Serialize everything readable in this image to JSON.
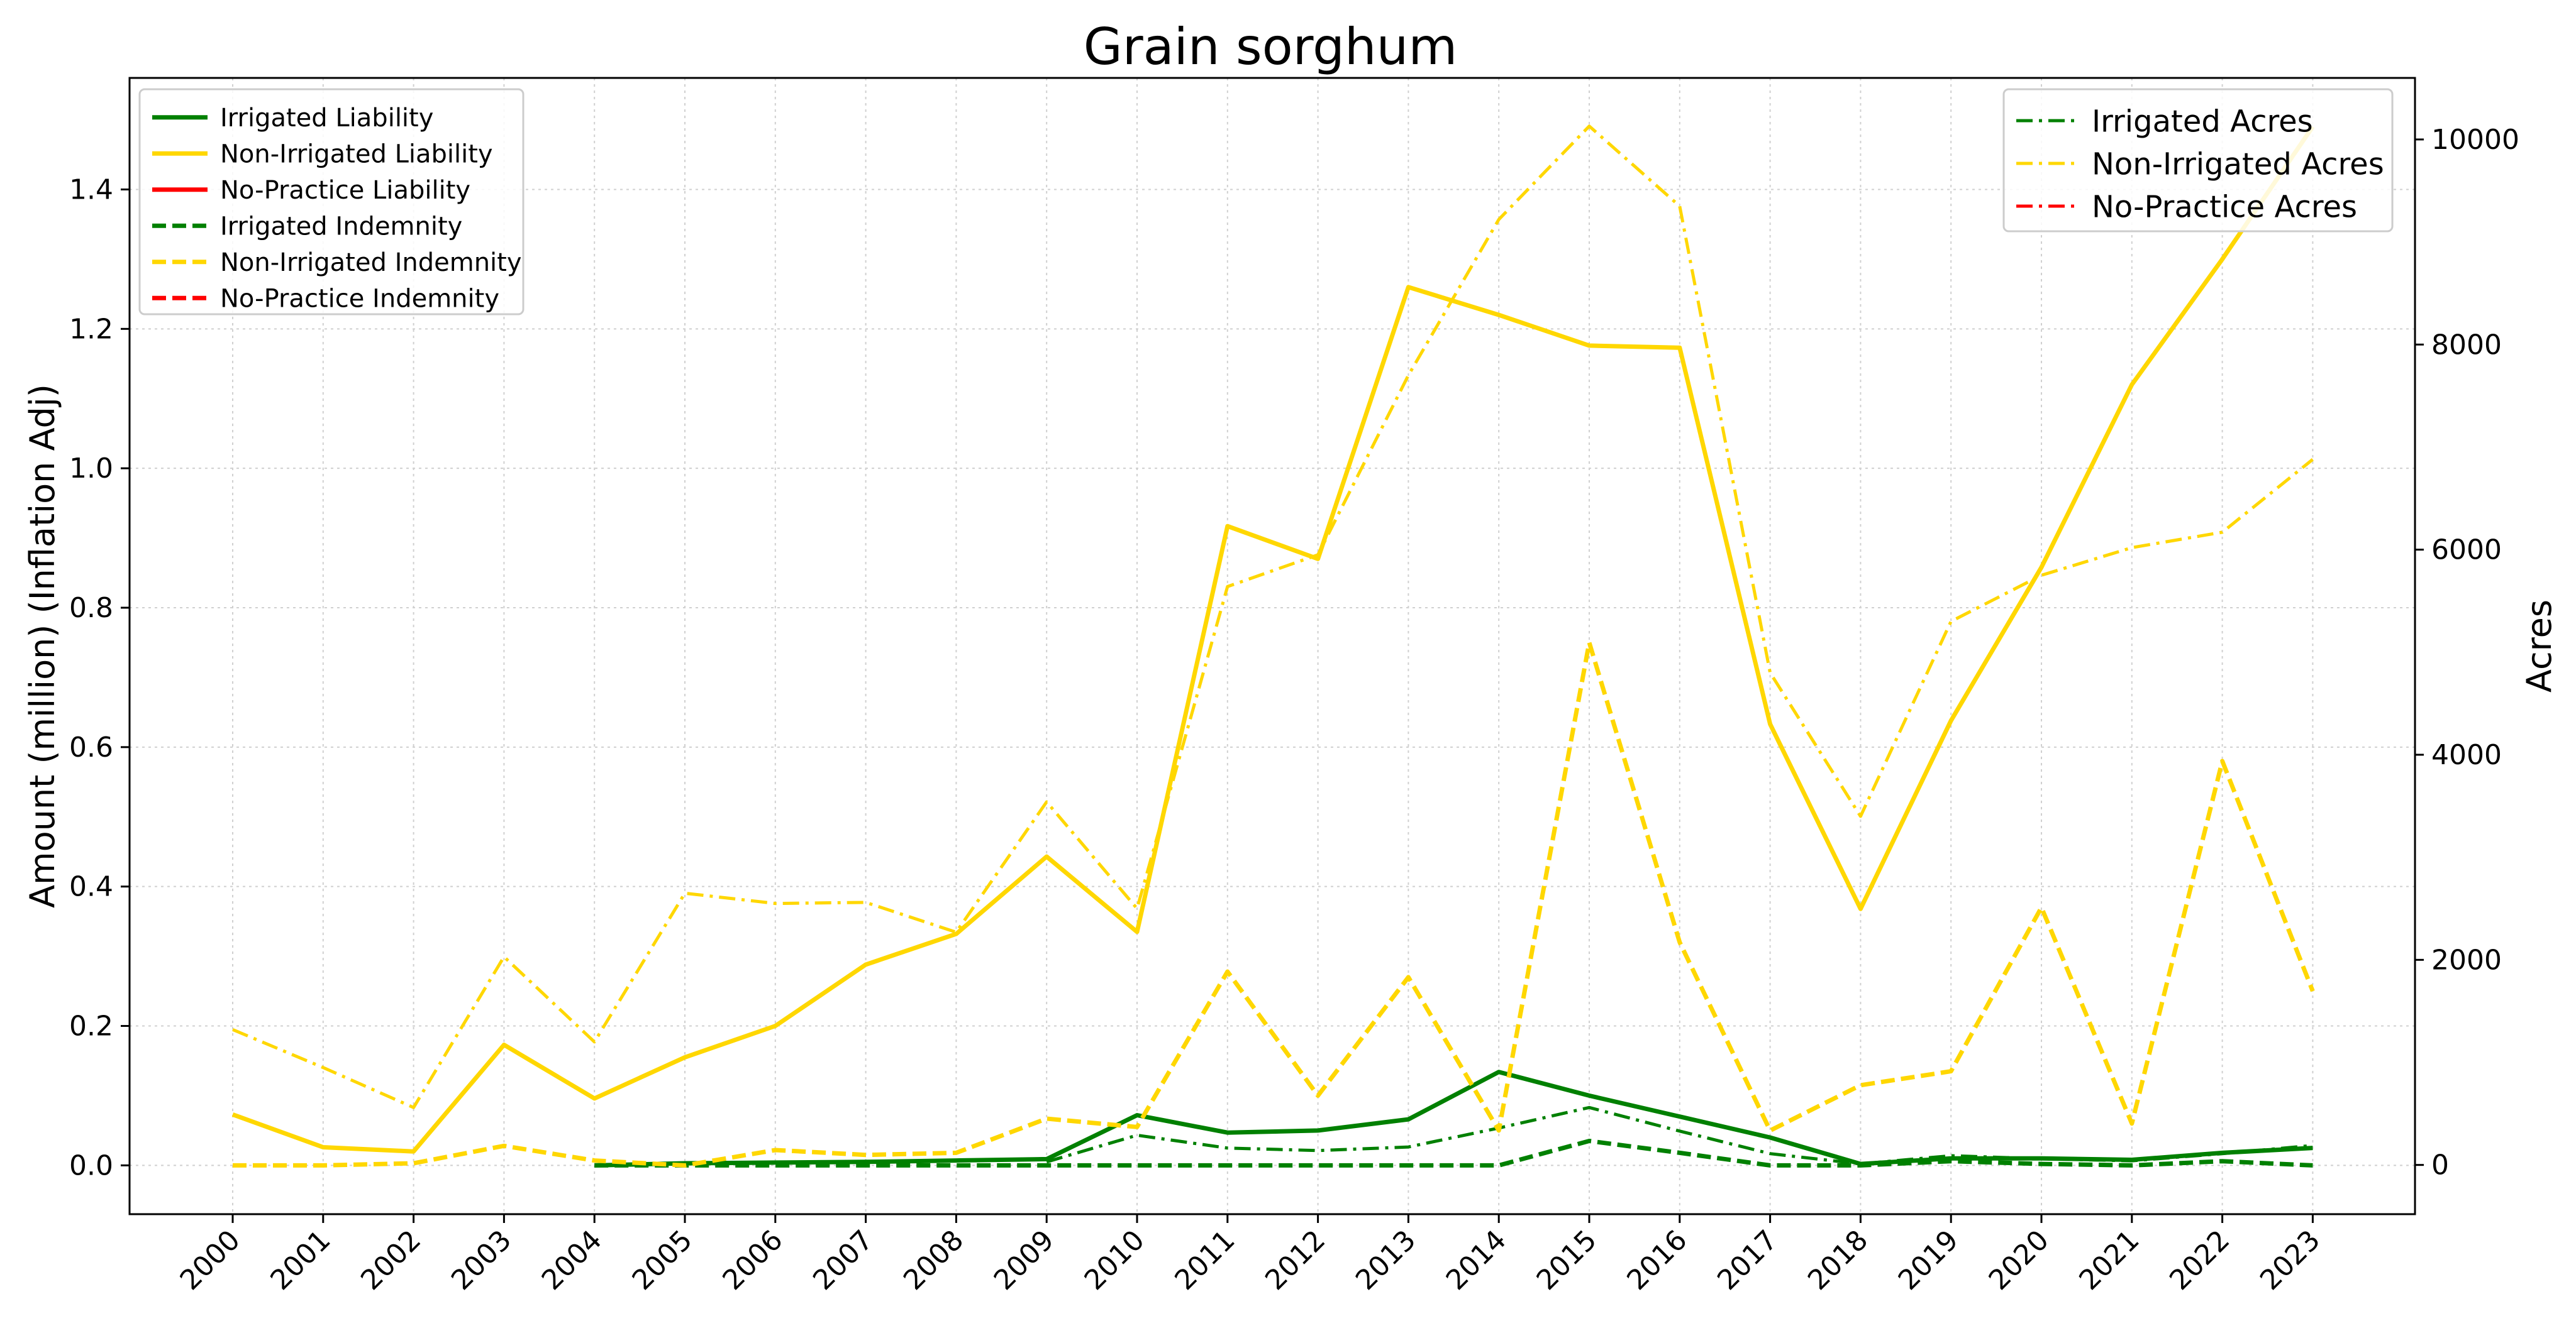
{
  "chart_data": {
    "type": "line",
    "title": "Grain sorghum",
    "ylabel_left": "Amount (million) (Inflation Adj)",
    "ylabel_right": "Acres",
    "x": [
      2000,
      2001,
      2002,
      2003,
      2004,
      2005,
      2006,
      2007,
      2008,
      2009,
      2010,
      2011,
      2012,
      2013,
      2014,
      2015,
      2016,
      2017,
      2018,
      2019,
      2020,
      2021,
      2022,
      2023
    ],
    "ylim_left": [
      -0.07,
      1.56
    ],
    "ylim_right": [
      -480,
      10600
    ],
    "yticks_left": [
      0.0,
      0.2,
      0.4,
      0.6,
      0.8,
      1.0,
      1.2,
      1.4
    ],
    "yticks_left_labels": [
      "0.0",
      "0.2",
      "0.4",
      "0.6",
      "0.8",
      "1.0",
      "1.2",
      "1.4"
    ],
    "yticks_right": [
      0,
      2000,
      4000,
      6000,
      8000,
      10000
    ],
    "yticks_right_labels": [
      "0",
      "2000",
      "4000",
      "6000",
      "8000",
      "10000"
    ],
    "grid": true,
    "colors": {
      "irrigated": "#008000",
      "non_irrigated": "#FFD700",
      "no_practice": "#FF0000"
    },
    "legend_left_position": "upper-left",
    "legend_right_position": "upper-right",
    "series_left": [
      {
        "name": "Irrigated Liability",
        "color": "#008000",
        "style": "solid",
        "values": [
          null,
          null,
          null,
          null,
          0.0,
          0.003,
          0.004,
          0.005,
          0.007,
          0.009,
          0.072,
          0.047,
          0.05,
          0.066,
          0.134,
          0.1,
          0.07,
          0.04,
          0.002,
          0.01,
          0.01,
          0.008,
          0.018,
          0.025
        ]
      },
      {
        "name": "Non-Irrigated Liability",
        "color": "#FFD700",
        "style": "solid",
        "values": [
          0.073,
          0.026,
          0.02,
          0.173,
          0.096,
          0.155,
          0.2,
          0.288,
          0.332,
          0.443,
          0.335,
          0.917,
          0.87,
          1.26,
          1.22,
          1.176,
          1.173,
          0.633,
          0.368,
          0.638,
          0.858,
          1.12,
          1.3,
          1.49
        ]
      },
      {
        "name": "No-Practice Liability",
        "color": "#FF0000",
        "style": "solid",
        "values": []
      },
      {
        "name": "Irrigated Indemnity",
        "color": "#008000",
        "style": "dashed",
        "values": [
          null,
          null,
          null,
          null,
          0.0,
          0.0,
          0.0,
          0.0,
          0.0,
          0.0,
          0.0,
          0.0,
          0.0,
          0.0,
          0.0,
          0.035,
          0.018,
          0.0,
          0.0,
          0.006,
          0.002,
          0.0,
          0.006,
          0.0
        ]
      },
      {
        "name": "Non-Irrigated Indemnity",
        "color": "#FFD700",
        "style": "dashed",
        "values": [
          0.0,
          0.0,
          0.003,
          0.028,
          0.007,
          0.0,
          0.022,
          0.015,
          0.018,
          0.067,
          0.055,
          0.278,
          0.1,
          0.27,
          0.05,
          0.75,
          0.32,
          0.05,
          0.115,
          0.135,
          0.37,
          0.06,
          0.58,
          0.25
        ]
      },
      {
        "name": "No-Practice Indemnity",
        "color": "#FF0000",
        "style": "dashed",
        "values": []
      }
    ],
    "series_right": [
      {
        "name": "Irrigated Acres",
        "color": "#008000",
        "style": "dashdot",
        "values": [
          null,
          null,
          null,
          null,
          null,
          null,
          null,
          null,
          null,
          30,
          290,
          165,
          140,
          175,
          360,
          560,
          330,
          110,
          10,
          90,
          60,
          40,
          110,
          190
        ]
      },
      {
        "name": "Non-Irrigated Acres",
        "color": "#FFD700",
        "style": "dashdot",
        "values": [
          1320,
          950,
          560,
          2030,
          1200,
          2650,
          2550,
          2560,
          2270,
          3540,
          2500,
          5640,
          5950,
          7700,
          9220,
          10130,
          9350,
          4800,
          3400,
          5300,
          5750,
          6020,
          6170,
          6880
        ]
      },
      {
        "name": "No-Practice Acres",
        "color": "#FF0000",
        "style": "dashdot",
        "values": []
      }
    ]
  }
}
